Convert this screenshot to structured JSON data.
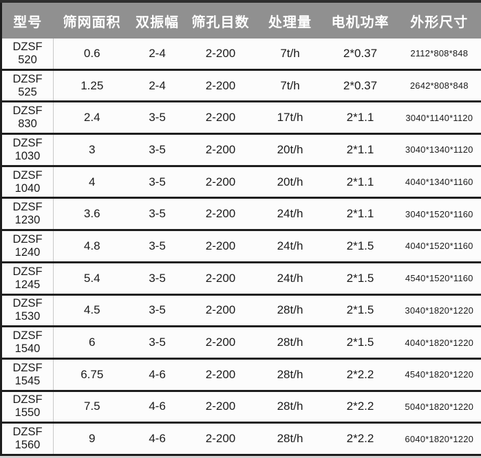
{
  "table": {
    "columns": [
      {
        "key": "model",
        "label": "型号"
      },
      {
        "key": "area",
        "label": "筛网面积"
      },
      {
        "key": "amplitude",
        "label": "双振幅"
      },
      {
        "key": "mesh",
        "label": "筛孔目数"
      },
      {
        "key": "capacity",
        "label": "处理量"
      },
      {
        "key": "power",
        "label": "电机功率"
      },
      {
        "key": "dimensions",
        "label": "外形尺寸"
      }
    ],
    "rows": [
      {
        "model": "DZSF\n520",
        "area": "0.6",
        "amplitude": "2-4",
        "mesh": "2-200",
        "capacity": "7t/h",
        "power": "2*0.37",
        "dimensions": "2112*808*848"
      },
      {
        "model": "DZSF\n525",
        "area": "1.25",
        "amplitude": "2-4",
        "mesh": "2-200",
        "capacity": "7t/h",
        "power": "2*0.37",
        "dimensions": "2642*808*848"
      },
      {
        "model": "DZSF\n830",
        "area": "2.4",
        "amplitude": "3-5",
        "mesh": "2-200",
        "capacity": "17t/h",
        "power": "2*1.1",
        "dimensions": "3040*1140*1120"
      },
      {
        "model": "DZSF\n1030",
        "area": "3",
        "amplitude": "3-5",
        "mesh": "2-200",
        "capacity": "20t/h",
        "power": "2*1.1",
        "dimensions": "3040*1340*1120"
      },
      {
        "model": "DZSF\n1040",
        "area": "4",
        "amplitude": "3-5",
        "mesh": "2-200",
        "capacity": "20t/h",
        "power": "2*1.1",
        "dimensions": "4040*1340*1160"
      },
      {
        "model": "DZSF\n1230",
        "area": "3.6",
        "amplitude": "3-5",
        "mesh": "2-200",
        "capacity": "24t/h",
        "power": "2*1.1",
        "dimensions": "3040*1520*1160"
      },
      {
        "model": "DZSF\n1240",
        "area": "4.8",
        "amplitude": "3-5",
        "mesh": "2-200",
        "capacity": "24t/h",
        "power": "2*1.5",
        "dimensions": "4040*1520*1160"
      },
      {
        "model": "DZSF\n1245",
        "area": "5.4",
        "amplitude": "3-5",
        "mesh": "2-200",
        "capacity": "24t/h",
        "power": "2*1.5",
        "dimensions": "4540*1520*1160"
      },
      {
        "model": "DZSF\n1530",
        "area": "4.5",
        "amplitude": "3-5",
        "mesh": "2-200",
        "capacity": "28t/h",
        "power": "2*1.5",
        "dimensions": "3040*1820*1220"
      },
      {
        "model": "DZSF\n1540",
        "area": "6",
        "amplitude": "3-5",
        "mesh": "2-200",
        "capacity": "28t/h",
        "power": "2*1.5",
        "dimensions": "4040*1820*1220"
      },
      {
        "model": "DZSF\n1545",
        "area": "6.75",
        "amplitude": "4-6",
        "mesh": "2-200",
        "capacity": "28t/h",
        "power": "2*2.2",
        "dimensions": "4540*1820*1220"
      },
      {
        "model": "DZSF\n1550",
        "area": "7.5",
        "amplitude": "4-6",
        "mesh": "2-200",
        "capacity": "28t/h",
        "power": "2*2.2",
        "dimensions": "5040*1820*1220"
      },
      {
        "model": "DZSF\n1560",
        "area": "9",
        "amplitude": "4-6",
        "mesh": "2-200",
        "capacity": "28t/h",
        "power": "2*2.2",
        "dimensions": "6040*1820*1220"
      }
    ]
  },
  "colors": {
    "header_bg": "#909090",
    "header_text": "#ffffff",
    "row_bg": "#fcfcfc",
    "border_dark": "#1e1e1e",
    "top_strip": "#2e2e2e",
    "column_divider": "#c8c8c8",
    "text": "#1b1b1b"
  }
}
